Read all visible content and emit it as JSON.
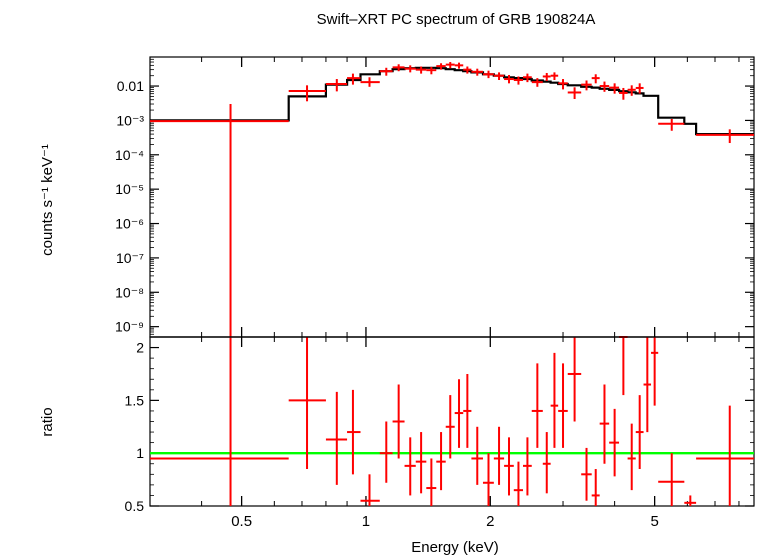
{
  "chart_data": [
    {
      "type": "scatter",
      "panel": "spectrum",
      "title": "Swift–XRT PC spectrum of GRB 190824A",
      "xlabel": "",
      "ylabel": "counts s⁻¹ keV⁻¹",
      "xscale": "log",
      "yscale": "log",
      "xlim": [
        0.3,
        8.7
      ],
      "ylim": [
        5e-10,
        0.07
      ],
      "y_ticks": [
        {
          "value": 0.01,
          "label": "0.01"
        },
        {
          "value": 0.001,
          "label": "10⁻³"
        },
        {
          "value": 0.0001,
          "label": "10⁻⁴"
        },
        {
          "value": 1e-05,
          "label": "10⁻⁵"
        },
        {
          "value": 1e-06,
          "label": "10⁻⁶"
        },
        {
          "value": 1e-07,
          "label": "10⁻⁷"
        },
        {
          "value": 1e-08,
          "label": "10⁻⁸"
        },
        {
          "value": 1e-09,
          "label": "10⁻⁹"
        }
      ],
      "series": [
        {
          "kind": "data",
          "color": "#ff0000",
          "points": [
            {
              "x": 0.47,
              "xlo": 0.3,
              "xhi": 0.65,
              "y": 0.00095,
              "ylo": 5e-10,
              "yhi": 0.003
            },
            {
              "x": 0.72,
              "xlo": 0.65,
              "xhi": 0.8,
              "y": 0.0072,
              "ylo": 0.0036,
              "yhi": 0.0105
            },
            {
              "x": 0.85,
              "xlo": 0.8,
              "xhi": 0.9,
              "y": 0.0115,
              "ylo": 0.007,
              "yhi": 0.016
            },
            {
              "x": 0.93,
              "xlo": 0.9,
              "xhi": 0.97,
              "y": 0.017,
              "ylo": 0.011,
              "yhi": 0.023
            },
            {
              "x": 1.02,
              "xlo": 0.97,
              "xhi": 1.08,
              "y": 0.013,
              "ylo": 0.0095,
              "yhi": 0.018
            },
            {
              "x": 1.12,
              "xlo": 1.08,
              "xhi": 1.16,
              "y": 0.027,
              "ylo": 0.02,
              "yhi": 0.034
            },
            {
              "x": 1.2,
              "xlo": 1.16,
              "xhi": 1.24,
              "y": 0.035,
              "ylo": 0.027,
              "yhi": 0.043
            },
            {
              "x": 1.28,
              "xlo": 1.24,
              "xhi": 1.32,
              "y": 0.032,
              "ylo": 0.025,
              "yhi": 0.04
            },
            {
              "x": 1.36,
              "xlo": 1.32,
              "xhi": 1.4,
              "y": 0.03,
              "ylo": 0.023,
              "yhi": 0.037
            },
            {
              "x": 1.44,
              "xlo": 1.4,
              "xhi": 1.48,
              "y": 0.029,
              "ylo": 0.022,
              "yhi": 0.036
            },
            {
              "x": 1.52,
              "xlo": 1.48,
              "xhi": 1.56,
              "y": 0.038,
              "ylo": 0.03,
              "yhi": 0.046
            },
            {
              "x": 1.6,
              "xlo": 1.56,
              "xhi": 1.64,
              "y": 0.042,
              "ylo": 0.033,
              "yhi": 0.05
            },
            {
              "x": 1.68,
              "xlo": 1.64,
              "xhi": 1.72,
              "y": 0.04,
              "ylo": 0.032,
              "yhi": 0.048
            },
            {
              "x": 1.76,
              "xlo": 1.72,
              "xhi": 1.8,
              "y": 0.03,
              "ylo": 0.023,
              "yhi": 0.037
            },
            {
              "x": 1.86,
              "xlo": 1.8,
              "xhi": 1.92,
              "y": 0.026,
              "ylo": 0.02,
              "yhi": 0.032
            },
            {
              "x": 1.98,
              "xlo": 1.92,
              "xhi": 2.04,
              "y": 0.022,
              "ylo": 0.017,
              "yhi": 0.028
            },
            {
              "x": 2.1,
              "xlo": 2.04,
              "xhi": 2.16,
              "y": 0.02,
              "ylo": 0.015,
              "yhi": 0.025
            },
            {
              "x": 2.22,
              "xlo": 2.16,
              "xhi": 2.28,
              "y": 0.016,
              "ylo": 0.012,
              "yhi": 0.021
            },
            {
              "x": 2.34,
              "xlo": 2.28,
              "xhi": 2.4,
              "y": 0.015,
              "ylo": 0.011,
              "yhi": 0.019
            },
            {
              "x": 2.46,
              "xlo": 2.4,
              "xhi": 2.52,
              "y": 0.018,
              "ylo": 0.013,
              "yhi": 0.023
            },
            {
              "x": 2.6,
              "xlo": 2.52,
              "xhi": 2.68,
              "y": 0.013,
              "ylo": 0.0095,
              "yhi": 0.017
            },
            {
              "x": 2.74,
              "xlo": 2.68,
              "xhi": 2.8,
              "y": 0.019,
              "ylo": 0.014,
              "yhi": 0.024
            },
            {
              "x": 2.86,
              "xlo": 2.8,
              "xhi": 2.92,
              "y": 0.02,
              "ylo": 0.015,
              "yhi": 0.025
            },
            {
              "x": 3.0,
              "xlo": 2.92,
              "xhi": 3.08,
              "y": 0.012,
              "ylo": 0.008,
              "yhi": 0.016
            },
            {
              "x": 3.2,
              "xlo": 3.08,
              "xhi": 3.32,
              "y": 0.0065,
              "ylo": 0.0042,
              "yhi": 0.0092
            },
            {
              "x": 3.42,
              "xlo": 3.32,
              "xhi": 3.52,
              "y": 0.011,
              "ylo": 0.0075,
              "yhi": 0.0145
            },
            {
              "x": 3.6,
              "xlo": 3.52,
              "xhi": 3.68,
              "y": 0.017,
              "ylo": 0.012,
              "yhi": 0.022
            },
            {
              "x": 3.78,
              "xlo": 3.68,
              "xhi": 3.88,
              "y": 0.01,
              "ylo": 0.0068,
              "yhi": 0.0135
            },
            {
              "x": 4.0,
              "xlo": 3.88,
              "xhi": 4.1,
              "y": 0.009,
              "ylo": 0.006,
              "yhi": 0.012
            },
            {
              "x": 4.2,
              "xlo": 4.1,
              "xhi": 4.3,
              "y": 0.0063,
              "ylo": 0.004,
              "yhi": 0.0088
            },
            {
              "x": 4.4,
              "xlo": 4.3,
              "xhi": 4.5,
              "y": 0.0078,
              "ylo": 0.0052,
              "yhi": 0.0105
            },
            {
              "x": 4.6,
              "xlo": 4.5,
              "xhi": 4.7,
              "y": 0.0088,
              "ylo": 0.006,
              "yhi": 0.012
            },
            {
              "x": 5.5,
              "xlo": 5.1,
              "xhi": 5.9,
              "y": 0.0008,
              "ylo": 0.0005,
              "yhi": 0.0011
            },
            {
              "x": 7.6,
              "xlo": 6.3,
              "xhi": 8.7,
              "y": 0.00038,
              "ylo": 0.00022,
              "yhi": 0.00055
            }
          ]
        },
        {
          "kind": "model",
          "color": "#000000",
          "steps": [
            {
              "x0": 0.3,
              "x1": 0.65,
              "y": 0.001
            },
            {
              "x0": 0.65,
              "x1": 0.8,
              "y": 0.005
            },
            {
              "x0": 0.8,
              "x1": 0.9,
              "y": 0.011
            },
            {
              "x0": 0.9,
              "x1": 0.97,
              "y": 0.015
            },
            {
              "x0": 0.97,
              "x1": 1.08,
              "y": 0.022
            },
            {
              "x0": 1.08,
              "x1": 1.16,
              "y": 0.027
            },
            {
              "x0": 1.16,
              "x1": 1.24,
              "y": 0.031
            },
            {
              "x0": 1.24,
              "x1": 1.32,
              "y": 0.033
            },
            {
              "x0": 1.32,
              "x1": 1.4,
              "y": 0.034
            },
            {
              "x0": 1.4,
              "x1": 1.48,
              "y": 0.034
            },
            {
              "x0": 1.48,
              "x1": 1.56,
              "y": 0.033
            },
            {
              "x0": 1.56,
              "x1": 1.64,
              "y": 0.031
            },
            {
              "x0": 1.64,
              "x1": 1.72,
              "y": 0.029
            },
            {
              "x0": 1.72,
              "x1": 1.8,
              "y": 0.027
            },
            {
              "x0": 1.8,
              "x1": 1.92,
              "y": 0.025
            },
            {
              "x0": 1.92,
              "x1": 2.04,
              "y": 0.022
            },
            {
              "x0": 2.04,
              "x1": 2.16,
              "y": 0.02
            },
            {
              "x0": 2.16,
              "x1": 2.28,
              "y": 0.018
            },
            {
              "x0": 2.28,
              "x1": 2.4,
              "y": 0.017
            },
            {
              "x0": 2.4,
              "x1": 2.52,
              "y": 0.016
            },
            {
              "x0": 2.52,
              "x1": 2.68,
              "y": 0.0145
            },
            {
              "x0": 2.68,
              "x1": 2.8,
              "y": 0.0135
            },
            {
              "x0": 2.8,
              "x1": 2.92,
              "y": 0.0125
            },
            {
              "x0": 2.92,
              "x1": 3.08,
              "y": 0.0115
            },
            {
              "x0": 3.08,
              "x1": 3.32,
              "y": 0.0105
            },
            {
              "x0": 3.32,
              "x1": 3.52,
              "y": 0.0095
            },
            {
              "x0": 3.52,
              "x1": 3.68,
              "y": 0.009
            },
            {
              "x0": 3.68,
              "x1": 3.88,
              "y": 0.0083
            },
            {
              "x0": 3.88,
              "x1": 4.1,
              "y": 0.0077
            },
            {
              "x0": 4.1,
              "x1": 4.3,
              "y": 0.0071
            },
            {
              "x0": 4.3,
              "x1": 4.5,
              "y": 0.0066
            },
            {
              "x0": 4.5,
              "x1": 4.7,
              "y": 0.0061
            },
            {
              "x0": 4.7,
              "x1": 5.1,
              "y": 0.0052
            },
            {
              "x0": 5.1,
              "x1": 5.9,
              "y": 0.0012
            },
            {
              "x0": 5.9,
              "x1": 6.3,
              "y": 0.0008
            },
            {
              "x0": 6.3,
              "x1": 8.7,
              "y": 0.0004
            }
          ]
        }
      ]
    },
    {
      "type": "scatter",
      "panel": "ratio",
      "title": "",
      "xlabel": "Energy (keV)",
      "ylabel": "ratio",
      "xscale": "log",
      "yscale": "linear",
      "xlim": [
        0.3,
        8.7
      ],
      "ylim": [
        0.5,
        2.1
      ],
      "x_ticks": [
        {
          "value": 0.5,
          "label": "0.5"
        },
        {
          "value": 1,
          "label": "1"
        },
        {
          "value": 2,
          "label": "2"
        },
        {
          "value": 5,
          "label": "5"
        }
      ],
      "y_ticks": [
        {
          "value": 0.5,
          "label": "0.5"
        },
        {
          "value": 1,
          "label": "1"
        },
        {
          "value": 1.5,
          "label": "1.5"
        },
        {
          "value": 2,
          "label": "2"
        }
      ],
      "reference_line": {
        "y": 1,
        "color": "#00ff00"
      },
      "series": [
        {
          "kind": "data",
          "color": "#ff0000",
          "points": [
            {
              "x": 0.47,
              "xlo": 0.3,
              "xhi": 0.65,
              "y": 0.95,
              "ylo": 0.5,
              "yhi": 2.1
            },
            {
              "x": 0.72,
              "xlo": 0.65,
              "xhi": 0.8,
              "y": 1.5,
              "ylo": 0.85,
              "yhi": 2.1
            },
            {
              "x": 0.85,
              "xlo": 0.8,
              "xhi": 0.9,
              "y": 1.13,
              "ylo": 0.7,
              "yhi": 1.58
            },
            {
              "x": 0.93,
              "xlo": 0.9,
              "xhi": 0.97,
              "y": 1.2,
              "ylo": 0.8,
              "yhi": 1.6
            },
            {
              "x": 1.02,
              "xlo": 0.97,
              "xhi": 1.08,
              "y": 0.55,
              "ylo": 0.5,
              "yhi": 0.8
            },
            {
              "x": 1.12,
              "xlo": 1.08,
              "xhi": 1.16,
              "y": 1.0,
              "ylo": 0.72,
              "yhi": 1.3
            },
            {
              "x": 1.2,
              "xlo": 1.16,
              "xhi": 1.24,
              "y": 1.3,
              "ylo": 0.95,
              "yhi": 1.65
            },
            {
              "x": 1.28,
              "xlo": 1.24,
              "xhi": 1.32,
              "y": 0.88,
              "ylo": 0.6,
              "yhi": 1.15
            },
            {
              "x": 1.36,
              "xlo": 1.32,
              "xhi": 1.4,
              "y": 0.92,
              "ylo": 0.62,
              "yhi": 1.2
            },
            {
              "x": 1.44,
              "xlo": 1.4,
              "xhi": 1.48,
              "y": 0.67,
              "ylo": 0.5,
              "yhi": 0.95
            },
            {
              "x": 1.52,
              "xlo": 1.48,
              "xhi": 1.56,
              "y": 0.92,
              "ylo": 0.65,
              "yhi": 1.2
            },
            {
              "x": 1.6,
              "xlo": 1.56,
              "xhi": 1.64,
              "y": 1.25,
              "ylo": 0.95,
              "yhi": 1.55
            },
            {
              "x": 1.68,
              "xlo": 1.64,
              "xhi": 1.72,
              "y": 1.38,
              "ylo": 1.05,
              "yhi": 1.7
            },
            {
              "x": 1.76,
              "xlo": 1.72,
              "xhi": 1.8,
              "y": 1.4,
              "ylo": 1.05,
              "yhi": 1.75
            },
            {
              "x": 1.86,
              "xlo": 1.8,
              "xhi": 1.92,
              "y": 0.95,
              "ylo": 0.7,
              "yhi": 1.25
            },
            {
              "x": 1.98,
              "xlo": 1.92,
              "xhi": 2.04,
              "y": 0.72,
              "ylo": 0.5,
              "yhi": 1.0
            },
            {
              "x": 2.1,
              "xlo": 2.04,
              "xhi": 2.16,
              "y": 0.95,
              "ylo": 0.7,
              "yhi": 1.25
            },
            {
              "x": 2.22,
              "xlo": 2.16,
              "xhi": 2.28,
              "y": 0.88,
              "ylo": 0.6,
              "yhi": 1.15
            },
            {
              "x": 2.34,
              "xlo": 2.28,
              "xhi": 2.4,
              "y": 0.65,
              "ylo": 0.5,
              "yhi": 0.92
            },
            {
              "x": 2.46,
              "xlo": 2.4,
              "xhi": 2.52,
              "y": 0.88,
              "ylo": 0.6,
              "yhi": 1.15
            },
            {
              "x": 2.6,
              "xlo": 2.52,
              "xhi": 2.68,
              "y": 1.4,
              "ylo": 1.05,
              "yhi": 1.85
            },
            {
              "x": 2.74,
              "xlo": 2.68,
              "xhi": 2.8,
              "y": 0.9,
              "ylo": 0.62,
              "yhi": 1.2
            },
            {
              "x": 2.86,
              "xlo": 2.8,
              "xhi": 2.92,
              "y": 1.45,
              "ylo": 1.05,
              "yhi": 1.95
            },
            {
              "x": 3.0,
              "xlo": 2.92,
              "xhi": 3.08,
              "y": 1.4,
              "ylo": 1.05,
              "yhi": 1.85
            },
            {
              "x": 3.2,
              "xlo": 3.08,
              "xhi": 3.32,
              "y": 1.75,
              "ylo": 1.3,
              "yhi": 2.1
            },
            {
              "x": 3.42,
              "xlo": 3.32,
              "xhi": 3.52,
              "y": 0.8,
              "ylo": 0.55,
              "yhi": 1.05
            },
            {
              "x": 3.6,
              "xlo": 3.52,
              "xhi": 3.68,
              "y": 0.6,
              "ylo": 0.5,
              "yhi": 0.85
            },
            {
              "x": 3.78,
              "xlo": 3.68,
              "xhi": 3.88,
              "y": 1.28,
              "ylo": 0.9,
              "yhi": 1.65
            },
            {
              "x": 4.0,
              "xlo": 3.88,
              "xhi": 4.1,
              "y": 1.1,
              "ylo": 0.78,
              "yhi": 1.42
            },
            {
              "x": 4.2,
              "xlo": 4.1,
              "xhi": 4.3,
              "y": 2.1,
              "ylo": 1.55,
              "yhi": 2.1
            },
            {
              "x": 4.4,
              "xlo": 4.3,
              "xhi": 4.5,
              "y": 0.95,
              "ylo": 0.65,
              "yhi": 1.28
            },
            {
              "x": 4.6,
              "xlo": 4.5,
              "xhi": 4.7,
              "y": 1.2,
              "ylo": 0.85,
              "yhi": 1.55
            },
            {
              "x": 4.8,
              "xlo": 4.7,
              "xhi": 4.9,
              "y": 1.65,
              "ylo": 1.2,
              "yhi": 2.1
            },
            {
              "x": 5.0,
              "xlo": 4.9,
              "xhi": 5.1,
              "y": 1.95,
              "ylo": 1.45,
              "yhi": 2.1
            },
            {
              "x": 5.5,
              "xlo": 5.1,
              "xhi": 5.9,
              "y": 0.73,
              "ylo": 0.5,
              "yhi": 1.0
            },
            {
              "x": 6.1,
              "xlo": 5.9,
              "xhi": 6.3,
              "y": 0.53,
              "ylo": 0.5,
              "yhi": 0.6
            },
            {
              "x": 7.6,
              "xlo": 6.3,
              "xhi": 8.7,
              "y": 0.95,
              "ylo": 0.5,
              "yhi": 1.45
            }
          ]
        }
      ]
    }
  ]
}
